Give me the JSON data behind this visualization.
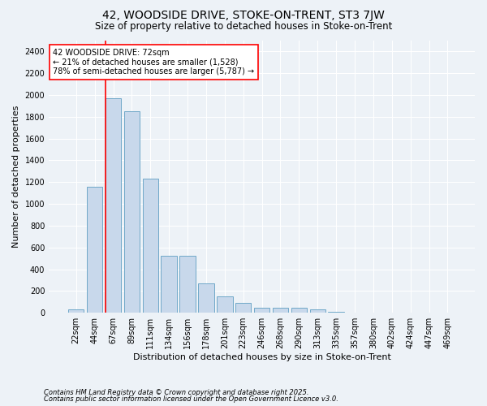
{
  "title_line1": "42, WOODSIDE DRIVE, STOKE-ON-TRENT, ST3 7JW",
  "title_line2": "Size of property relative to detached houses in Stoke-on-Trent",
  "xlabel": "Distribution of detached houses by size in Stoke-on-Trent",
  "ylabel": "Number of detached properties",
  "annotation_text": "42 WOODSIDE DRIVE: 72sqm\n← 21% of detached houses are smaller (1,528)\n78% of semi-detached houses are larger (5,787) →",
  "footer_line1": "Contains HM Land Registry data © Crown copyright and database right 2025.",
  "footer_line2": "Contains public sector information licensed under the Open Government Licence v3.0.",
  "bar_color": "#c8d8eb",
  "bar_edge_color": "#6fa8c8",
  "red_line_index": 2,
  "categories": [
    "22sqm",
    "44sqm",
    "67sqm",
    "89sqm",
    "111sqm",
    "134sqm",
    "156sqm",
    "178sqm",
    "201sqm",
    "223sqm",
    "246sqm",
    "268sqm",
    "290sqm",
    "313sqm",
    "335sqm",
    "357sqm",
    "380sqm",
    "402sqm",
    "424sqm",
    "447sqm",
    "469sqm"
  ],
  "bar_heights": [
    30,
    1160,
    1970,
    1850,
    1230,
    520,
    520,
    270,
    150,
    90,
    45,
    45,
    45,
    30,
    10,
    5,
    5,
    5,
    3,
    3,
    3
  ],
  "ylim": [
    0,
    2500
  ],
  "yticks": [
    0,
    200,
    400,
    600,
    800,
    1000,
    1200,
    1400,
    1600,
    1800,
    2000,
    2200,
    2400
  ],
  "background_color": "#edf2f7",
  "grid_color": "#ffffff",
  "title_fontsize": 10,
  "subtitle_fontsize": 8.5,
  "axis_label_fontsize": 8,
  "tick_fontsize": 7
}
